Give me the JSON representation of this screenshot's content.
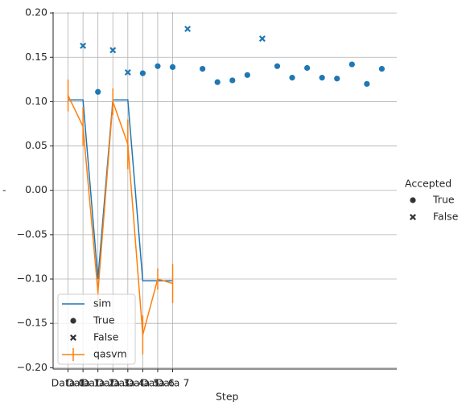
{
  "chart_data": {
    "type": "line",
    "y_label": "-",
    "x_label": "Step",
    "xlim": [
      -1,
      22
    ],
    "ylim": [
      -0.2015,
      0.201
    ],
    "xticks": [
      {
        "value": 0,
        "label": "Data 0"
      },
      {
        "value": 1,
        "label": "Data 1"
      },
      {
        "value": 2,
        "label": "Data 2"
      },
      {
        "value": 3,
        "label": "Data 3"
      },
      {
        "value": 4,
        "label": "Data 4"
      },
      {
        "value": 5,
        "label": "Data 5"
      },
      {
        "value": 6,
        "label": "Data 6"
      },
      {
        "value": 7,
        "label": "Data 7"
      }
    ],
    "yticks": [
      {
        "value": -0.2,
        "label": "−0.20"
      },
      {
        "value": -0.15,
        "label": "−0.15"
      },
      {
        "value": -0.1,
        "label": "−0.10"
      },
      {
        "value": -0.05,
        "label": "−0.05"
      },
      {
        "value": 0,
        "label": "0.00"
      },
      {
        "value": 0.05,
        "label": "0.05"
      },
      {
        "value": 0.1,
        "label": "0.10"
      },
      {
        "value": 0.15,
        "label": "0.15"
      },
      {
        "value": 0.2,
        "label": "0.20"
      }
    ],
    "grid": true,
    "series": [
      {
        "name": "sim",
        "color": "#1f77b4",
        "x": [
          0,
          1,
          2,
          3,
          4,
          5,
          6,
          7
        ],
        "values": [
          0.102,
          0.102,
          -0.1,
          0.102,
          0.102,
          -0.102,
          -0.102,
          -0.102
        ]
      },
      {
        "name": "qasvm",
        "color": "#ff7f0e",
        "x": [
          0,
          1,
          2,
          3,
          4,
          5,
          6,
          7
        ],
        "values": [
          0.107,
          0.072,
          -0.115,
          0.1,
          0.052,
          -0.163,
          -0.1,
          -0.105
        ],
        "errors": [
          0.018,
          0.022,
          0.01,
          0.015,
          0.028,
          0.022,
          0.012,
          0.022
        ]
      }
    ],
    "points": {
      "color": "#1f77b4",
      "x": [
        1,
        2,
        3,
        4,
        5,
        6,
        7,
        8,
        9,
        10,
        11,
        12,
        13,
        14,
        15,
        16,
        17,
        18,
        19,
        20,
        21
      ],
      "values": [
        0.163,
        0.111,
        0.158,
        0.133,
        0.132,
        0.14,
        0.139,
        0.182,
        0.137,
        0.122,
        0.124,
        0.13,
        0.171,
        0.14,
        0.127,
        0.138,
        0.127,
        0.126,
        0.142,
        0.12,
        0.137
      ],
      "accepted": [
        "False",
        "True",
        "False",
        "False",
        "True",
        "True",
        "True",
        "False",
        "True",
        "True",
        "True",
        "True",
        "False",
        "True",
        "True",
        "True",
        "True",
        "True",
        "True",
        "True",
        "True"
      ]
    },
    "markers": [
      {
        "name": "True",
        "shape": "circle"
      },
      {
        "name": "False",
        "shape": "x"
      }
    ],
    "legend_title": "Accepted"
  }
}
